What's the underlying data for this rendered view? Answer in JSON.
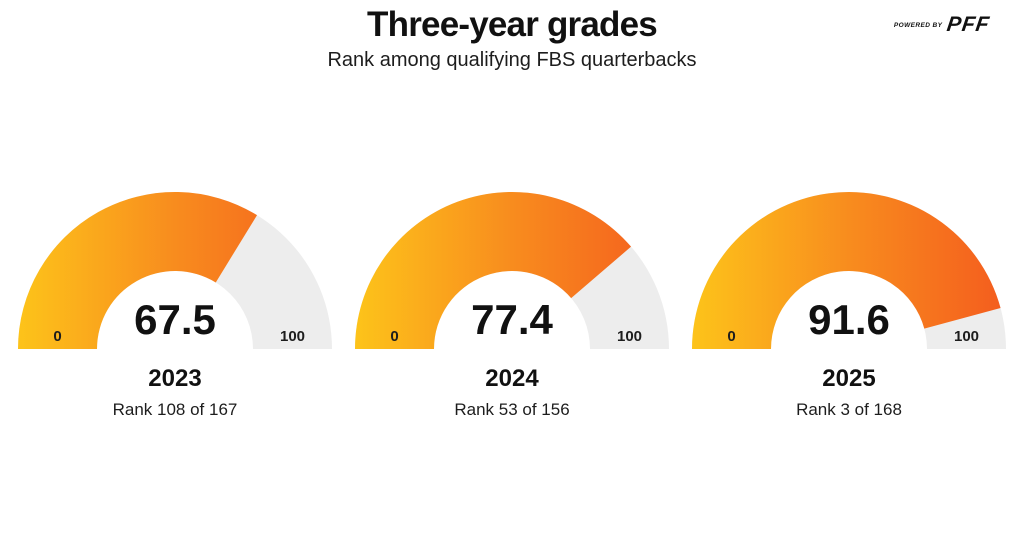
{
  "header": {
    "title": "Three-year grades",
    "subtitle": "Rank among qualifying FBS quarterbacks",
    "powered_by_label": "POWERED BY",
    "brand_name": "PFF"
  },
  "chart_data": {
    "type": "gauge",
    "title": "Three-year grades",
    "subtitle": "Rank among qualifying FBS quarterbacks",
    "min": 0,
    "max": 100,
    "min_label": "0",
    "max_label": "100",
    "layout": {
      "orientation": "semicircle",
      "gauges_per_row": 3
    },
    "colors": {
      "fill_gradient": [
        "#FDC51A",
        "#F88C1E",
        "#F45B1E"
      ],
      "track": "#EDEDED",
      "value_text": "#111111",
      "tick_text": "#1d1d1d"
    },
    "gauges": [
      {
        "year": "2023",
        "value": 67.5,
        "value_label": "67.5",
        "rank": 108,
        "rank_total": 167,
        "rank_label": "Rank 108 of 167"
      },
      {
        "year": "2024",
        "value": 77.4,
        "value_label": "77.4",
        "rank": 53,
        "rank_total": 156,
        "rank_label": "Rank 53 of 156"
      },
      {
        "year": "2025",
        "value": 91.6,
        "value_label": "91.6",
        "rank": 3,
        "rank_total": 168,
        "rank_label": "Rank 3 of 168"
      }
    ]
  }
}
